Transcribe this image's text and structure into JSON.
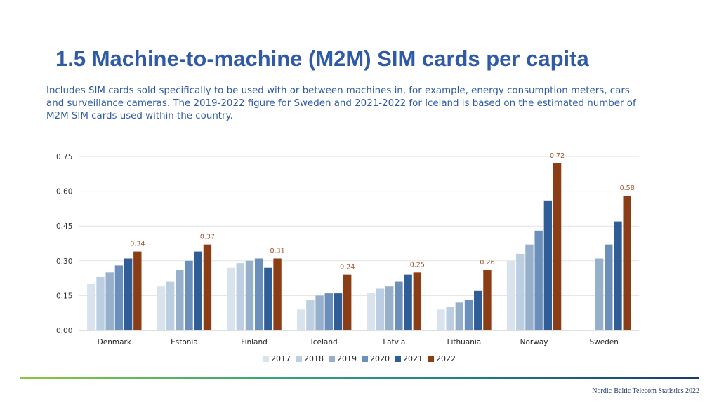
{
  "page": {
    "title": "1.5 Machine-to-machine (M2M) SIM cards per capita",
    "subtitle": "Includes SIM cards sold specifically to be used with or between machines in, for example, energy consumption meters, cars and surveillance cameras. The 2019-2022 figure for Sweden and 2021-2022 for Iceland is based on the estimated number of M2M SIM cards used within the country.",
    "footer": "Nordic-Baltic Telecom Statistics 2022"
  },
  "chart_data": {
    "type": "bar",
    "title": "",
    "xlabel": "",
    "ylabel": "",
    "ylim": [
      0,
      0.75
    ],
    "yticks": [
      "0.00",
      "0.15",
      "0.30",
      "0.45",
      "0.60",
      "0.75"
    ],
    "ytick_values": [
      0,
      0.15,
      0.3,
      0.45,
      0.6,
      0.75
    ],
    "grid": true,
    "legend_position": "bottom-center",
    "categories": [
      "Denmark",
      "Estonia",
      "Finland",
      "Iceland",
      "Latvia",
      "Lithuania",
      "Norway",
      "Sweden"
    ],
    "series": [
      {
        "name": "2017",
        "color": "#d9e3ee",
        "values": [
          0.2,
          0.19,
          0.27,
          0.09,
          0.16,
          0.09,
          0.3,
          null
        ]
      },
      {
        "name": "2018",
        "color": "#bccfe2",
        "values": [
          0.23,
          0.21,
          0.29,
          0.13,
          0.18,
          0.1,
          0.33,
          null
        ]
      },
      {
        "name": "2019",
        "color": "#96b0cc",
        "values": [
          0.25,
          0.26,
          0.3,
          0.15,
          0.19,
          0.12,
          0.37,
          0.31
        ]
      },
      {
        "name": "2020",
        "color": "#6b8fbb",
        "values": [
          0.28,
          0.3,
          0.31,
          0.16,
          0.21,
          0.13,
          0.43,
          0.37
        ]
      },
      {
        "name": "2021",
        "color": "#2f5d96",
        "values": [
          0.31,
          0.34,
          0.27,
          0.16,
          0.24,
          0.17,
          0.56,
          0.47
        ]
      },
      {
        "name": "2022",
        "color": "#8b3e16",
        "values": [
          0.34,
          0.37,
          0.31,
          0.24,
          0.25,
          0.26,
          0.72,
          0.58
        ]
      }
    ],
    "data_labels": {
      "series": "2022",
      "color": "#a0522d",
      "labels": [
        "0.34",
        "0.37",
        "0.31",
        "0.24",
        "0.25",
        "0.26",
        "0.72",
        "0.58"
      ]
    }
  }
}
